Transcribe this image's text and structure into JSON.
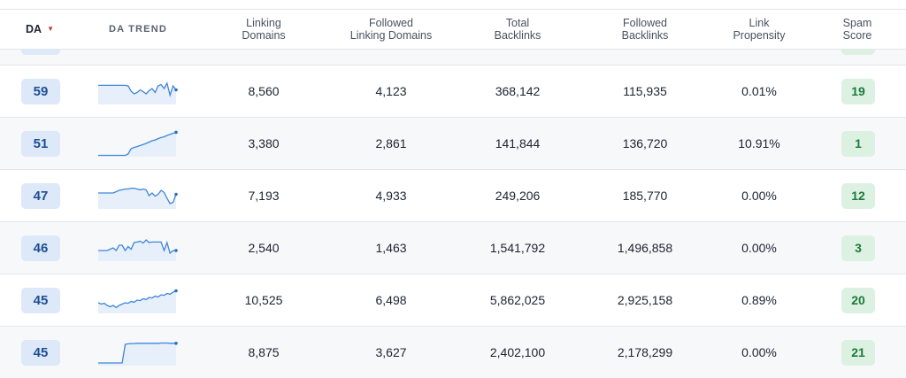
{
  "headers": {
    "da": "DA",
    "da_trend": "DA TREND",
    "linking_domains": [
      "Linking",
      "Domains"
    ],
    "followed_linking_domains": [
      "Followed",
      "Linking Domains"
    ],
    "total_backlinks": [
      "Total",
      "Backlinks"
    ],
    "followed_backlinks": [
      "Followed",
      "Backlinks"
    ],
    "link_propensity": [
      "Link",
      "Propensity"
    ],
    "spam_score": [
      "Spam",
      "Score"
    ]
  },
  "sort_icon": "triangle-down-icon",
  "colors": {
    "da_badge_bg": "#dde8f8",
    "da_badge_text": "#1f4f93",
    "spam_badge_bg": "#dcf1e2",
    "spam_badge_text": "#1d7a3a",
    "trend_line": "#3f86d9",
    "sort_arrow": "#c0392b"
  },
  "rows": [
    {
      "da": "59",
      "linking_domains": "8,560",
      "followed_linking_domains": "4,123",
      "total_backlinks": "368,142",
      "followed_backlinks": "115,935",
      "link_propensity": "0.01%",
      "spam_score": "19",
      "trend": [
        72,
        72,
        72,
        72,
        72,
        72,
        72,
        72,
        72,
        72,
        70,
        50,
        40,
        45,
        55,
        48,
        40,
        52,
        60,
        45,
        70,
        75,
        60,
        80,
        35,
        70,
        55
      ]
    },
    {
      "da": "51",
      "linking_domains": "3,380",
      "followed_linking_domains": "2,861",
      "total_backlinks": "141,844",
      "followed_backlinks": "136,720",
      "link_propensity": "10.91%",
      "spam_score": "1",
      "trend": [
        5,
        5,
        5,
        5,
        5,
        5,
        5,
        5,
        5,
        5,
        10,
        30,
        35,
        38,
        42,
        46,
        50,
        55,
        60,
        63,
        68,
        72,
        75,
        80,
        84,
        88,
        92
      ]
    },
    {
      "da": "47",
      "linking_domains": "7,193",
      "followed_linking_domains": "4,933",
      "total_backlinks": "249,206",
      "followed_backlinks": "185,770",
      "link_propensity": "0.00%",
      "spam_score": "12",
      "trend": [
        60,
        60,
        60,
        60,
        60,
        60,
        65,
        70,
        72,
        75,
        75,
        78,
        78,
        75,
        72,
        75,
        72,
        50,
        60,
        48,
        55,
        70,
        62,
        40,
        20,
        25,
        55
      ]
    },
    {
      "da": "46",
      "linking_domains": "2,540",
      "followed_linking_domains": "1,463",
      "total_backlinks": "1,541,792",
      "followed_backlinks": "1,496,858",
      "link_propensity": "0.00%",
      "spam_score": "3",
      "trend": [
        40,
        40,
        40,
        40,
        45,
        50,
        40,
        60,
        60,
        40,
        55,
        45,
        70,
        72,
        75,
        68,
        80,
        70,
        72,
        72,
        72,
        72,
        40,
        70,
        30,
        40,
        40
      ]
    },
    {
      "da": "45",
      "linking_domains": "10,525",
      "followed_linking_domains": "6,498",
      "total_backlinks": "5,862,025",
      "followed_backlinks": "2,925,158",
      "link_propensity": "0.89%",
      "spam_score": "20",
      "trend": [
        40,
        35,
        38,
        30,
        25,
        30,
        22,
        30,
        35,
        40,
        38,
        45,
        42,
        50,
        48,
        55,
        52,
        60,
        58,
        65,
        62,
        70,
        68,
        75,
        72,
        80,
        85
      ]
    },
    {
      "da": "45",
      "linking_domains": "8,875",
      "followed_linking_domains": "3,627",
      "total_backlinks": "2,402,100",
      "followed_backlinks": "2,178,299",
      "link_propensity": "0.00%",
      "spam_score": "21",
      "trend": [
        10,
        10,
        10,
        10,
        10,
        10,
        10,
        10,
        10,
        80,
        82,
        83,
        83,
        84,
        84,
        84,
        84,
        84,
        84,
        84,
        84,
        85,
        85,
        85,
        84,
        84,
        84
      ]
    }
  ]
}
